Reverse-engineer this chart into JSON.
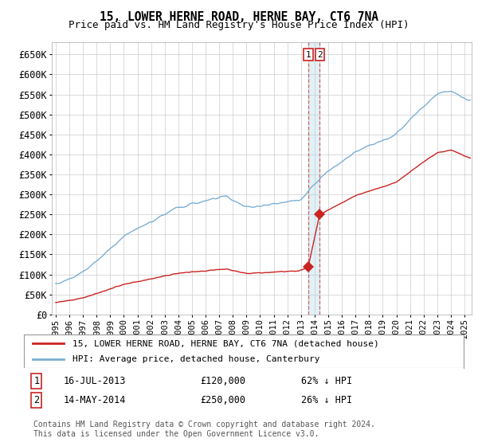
{
  "title": "15, LOWER HERNE ROAD, HERNE BAY, CT6 7NA",
  "subtitle": "Price paid vs. HM Land Registry's House Price Index (HPI)",
  "ylim": [
    0,
    680000
  ],
  "yticks": [
    0,
    50000,
    100000,
    150000,
    200000,
    250000,
    300000,
    350000,
    400000,
    450000,
    500000,
    550000,
    600000,
    650000
  ],
  "ytick_labels": [
    "£0",
    "£50K",
    "£100K",
    "£150K",
    "£200K",
    "£250K",
    "£300K",
    "£350K",
    "£400K",
    "£450K",
    "£500K",
    "£550K",
    "£600K",
    "£650K"
  ],
  "hpi_color": "#7bafd4",
  "price_color": "#cc2222",
  "transaction_1_date": 2013.54,
  "transaction_1_price": 120000,
  "transaction_2_date": 2014.37,
  "transaction_2_price": 250000,
  "legend_label_price": "15, LOWER HERNE ROAD, HERNE BAY, CT6 7NA (detached house)",
  "legend_label_hpi": "HPI: Average price, detached house, Canterbury",
  "footer": "Contains HM Land Registry data © Crown copyright and database right 2024.\nThis data is licensed under the Open Government Licence v3.0.",
  "background_color": "#ffffff",
  "grid_color": "#cccccc"
}
